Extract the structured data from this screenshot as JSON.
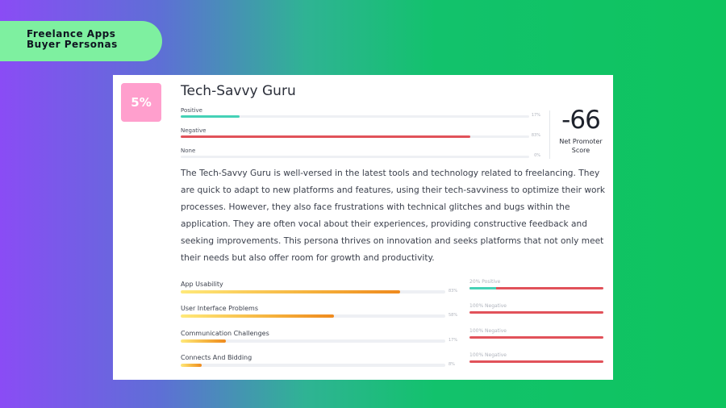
{
  "slide_title": {
    "line1": "Freelance Apps",
    "line2": "Buyer Personas"
  },
  "persona": {
    "share": "5%",
    "name": "Tech-Savvy Guru",
    "colors": {
      "badge": "#ff9fcd",
      "positive": "#45d1b6",
      "negative": "#e1525a"
    }
  },
  "sentiment": [
    {
      "label": "Positive",
      "percent_text": "17%",
      "value": 17,
      "color": "#45d1b6"
    },
    {
      "label": "Negative",
      "percent_text": "83%",
      "value": 83,
      "color": "#e1525a"
    },
    {
      "label": "None",
      "percent_text": "0%",
      "value": 0,
      "color": "#cfd3da"
    }
  ],
  "nps": {
    "value": "-66",
    "label_line1": "Net Promoter",
    "label_line2": "Score"
  },
  "description": "The Tech-Savvy Guru is well-versed in the latest tools and technology related to freelancing. They are quick to adapt to new platforms and features, using their tech-savviness to optimize their work processes. However, they also face frustrations with technical glitches and bugs within the application. They are often vocal about their experiences, providing constructive feedback and seeking improvements. This persona thrives on innovation and seeks platforms that not only meet their needs but also offer room for growth and productivity.",
  "metrics": [
    {
      "label": "App Usability",
      "percent_text": "83%",
      "value": 83,
      "sentiment_text": "20% Positive",
      "positive": 20
    },
    {
      "label": "User Interface Problems",
      "percent_text": "58%",
      "value": 58,
      "sentiment_text": "100% Negative",
      "positive": 0
    },
    {
      "label": "Communication Challenges",
      "percent_text": "17%",
      "value": 17,
      "sentiment_text": "100% Negative",
      "positive": 0
    },
    {
      "label": "Connects And Bidding",
      "percent_text": "8%",
      "value": 8,
      "sentiment_text": "100% Negative",
      "positive": 0
    }
  ]
}
